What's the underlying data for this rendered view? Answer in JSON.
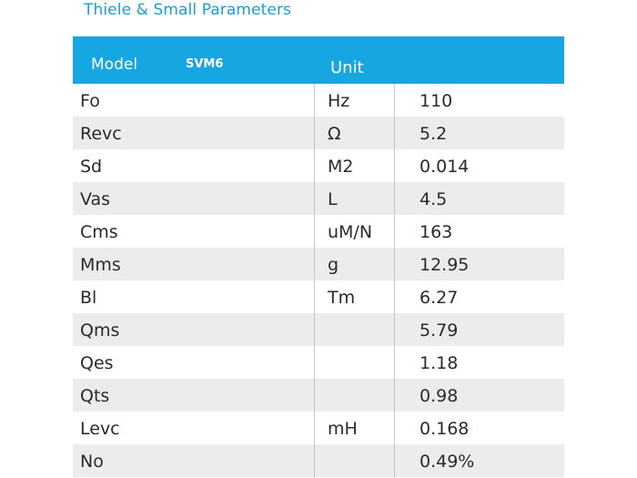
{
  "title": "Thiele & Small Parameters",
  "table": {
    "header": {
      "model_label": "Model",
      "model_value": "SVM6",
      "unit_label": "Unit"
    },
    "rows": [
      {
        "param": "Fo",
        "unit": "Hz",
        "value": "110"
      },
      {
        "param": "Revc",
        "unit": "Ω",
        "value": "5.2"
      },
      {
        "param": "Sd",
        "unit": "M2",
        "value": "0.014"
      },
      {
        "param": "Vas",
        "unit": "L",
        "value": "4.5"
      },
      {
        "param": "Cms",
        "unit": "uM/N",
        "value": "163"
      },
      {
        "param": "Mms",
        "unit": "g",
        "value": "12.95"
      },
      {
        "param": "Bl",
        "unit": "Tm",
        "value": "6.27"
      },
      {
        "param": "Qms",
        "unit": "",
        "value": "5.79"
      },
      {
        "param": "Qes",
        "unit": "",
        "value": "1.18"
      },
      {
        "param": "Qts",
        "unit": "",
        "value": "0.98"
      },
      {
        "param": "Levc",
        "unit": "mH",
        "value": "0.168"
      },
      {
        "param": "No",
        "unit": "",
        "value": "0.49%"
      }
    ]
  },
  "colors": {
    "accent": "#16a6e2",
    "title": "#1a9cd6",
    "stripe": "#ececec"
  }
}
